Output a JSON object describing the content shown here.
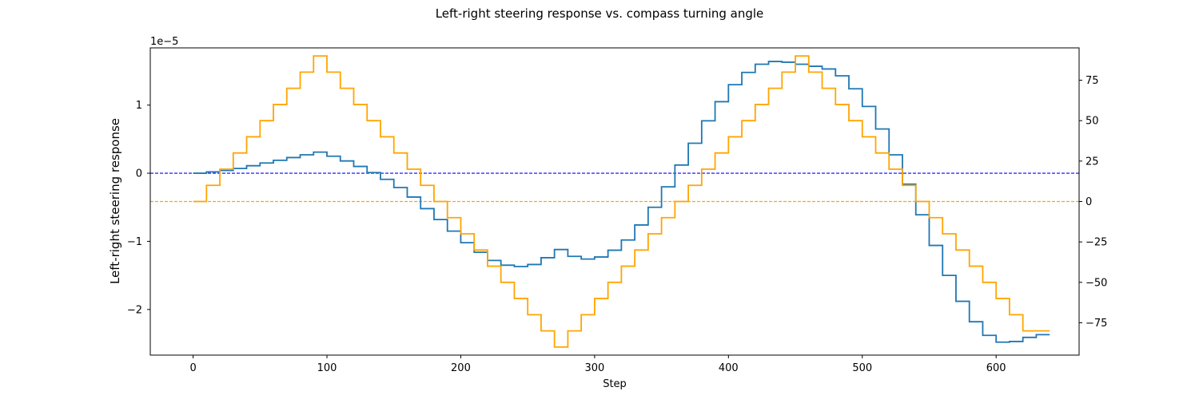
{
  "chart_data": {
    "type": "line",
    "title": "Left-right steering response vs. compass turning angle",
    "xlabel": "Step",
    "ylabel": "Left-right steering response",
    "y2label": "",
    "y_offset_text": "1e−5",
    "xlim": [
      -32,
      662
    ],
    "ylim": [
      -2.67,
      1.84
    ],
    "y2lim": [
      -95,
      95
    ],
    "x_ticks": [
      0,
      100,
      200,
      300,
      400,
      500,
      600
    ],
    "y_ticks": [
      -2,
      -1,
      0,
      1
    ],
    "y_tick_labels": [
      "−2",
      "−1",
      "0",
      "1"
    ],
    "y2_ticks": [
      -75,
      -50,
      -25,
      0,
      25,
      50,
      75
    ],
    "y2_tick_labels": [
      "−75",
      "−50",
      "−25",
      "0",
      "25",
      "50",
      "75"
    ],
    "colors": {
      "steering": "#1f77b4",
      "angle": "#ffa500",
      "steering_zero": "#0000ff",
      "angle_zero": "#ffa500"
    },
    "legend": "none",
    "grid": false,
    "series": [
      {
        "axis": "left",
        "color": "#1f77b4",
        "step": 10,
        "x": [
          0,
          10,
          20,
          30,
          40,
          50,
          60,
          70,
          80,
          90,
          100,
          110,
          120,
          130,
          140,
          150,
          160,
          170,
          180,
          190,
          200,
          210,
          220,
          230,
          240,
          250,
          260,
          270,
          280,
          290,
          300,
          310,
          320,
          330,
          340,
          350,
          360,
          370,
          380,
          390,
          400,
          410,
          420,
          430,
          440,
          450,
          460,
          470,
          480,
          490,
          500,
          510,
          520,
          530,
          540,
          550,
          560,
          570,
          580,
          590,
          600,
          610,
          620,
          630
        ],
        "values": [
          0.0,
          0.02,
          0.04,
          0.07,
          0.11,
          0.15,
          0.19,
          0.23,
          0.27,
          0.31,
          0.25,
          0.18,
          0.1,
          0.01,
          -0.09,
          -0.21,
          -0.35,
          -0.52,
          -0.68,
          -0.85,
          -1.02,
          -1.16,
          -1.28,
          -1.35,
          -1.37,
          -1.34,
          -1.24,
          -1.12,
          -1.22,
          -1.26,
          -1.23,
          -1.13,
          -0.98,
          -0.76,
          -0.5,
          -0.2,
          0.12,
          0.44,
          0.77,
          1.05,
          1.3,
          1.48,
          1.6,
          1.64,
          1.63,
          1.6,
          1.57,
          1.53,
          1.43,
          1.24,
          0.98,
          0.65,
          0.27,
          -0.16,
          -0.61,
          -1.06,
          -1.5,
          -1.88,
          -2.18,
          -2.38,
          -2.48,
          -2.47,
          -2.41,
          -2.37
        ]
      },
      {
        "axis": "right",
        "color": "#ffa500",
        "step": 10,
        "x": [
          0,
          10,
          20,
          30,
          40,
          50,
          60,
          70,
          80,
          90,
          100,
          110,
          120,
          130,
          140,
          150,
          160,
          170,
          180,
          190,
          200,
          210,
          220,
          230,
          240,
          250,
          260,
          270,
          280,
          290,
          300,
          310,
          320,
          330,
          340,
          350,
          360,
          370,
          380,
          390,
          400,
          410,
          420,
          430,
          440,
          450,
          460,
          470,
          480,
          490,
          500,
          510,
          520,
          530,
          540,
          550,
          560,
          570,
          580,
          590,
          600,
          610,
          620,
          630
        ],
        "values": [
          0,
          10,
          20,
          30,
          40,
          50,
          60,
          70,
          80,
          90,
          80,
          70,
          60,
          50,
          40,
          30,
          20,
          10,
          0,
          -10,
          -20,
          -30,
          -40,
          -50,
          -60,
          -70,
          -80,
          -90,
          -80,
          -70,
          -60,
          -50,
          -40,
          -30,
          -20,
          -10,
          0,
          10,
          20,
          30,
          40,
          50,
          60,
          70,
          80,
          90,
          80,
          70,
          60,
          50,
          40,
          30,
          20,
          10,
          0,
          -10,
          -20,
          -30,
          -40,
          -50,
          -60,
          -70,
          -80,
          -80
        ]
      }
    ],
    "reference_lines": [
      {
        "axis": "left",
        "y": 0,
        "color": "#0000ff",
        "style": "dashed"
      },
      {
        "axis": "right",
        "y": 0,
        "color": "#ffa500",
        "style": "dashed"
      }
    ]
  }
}
